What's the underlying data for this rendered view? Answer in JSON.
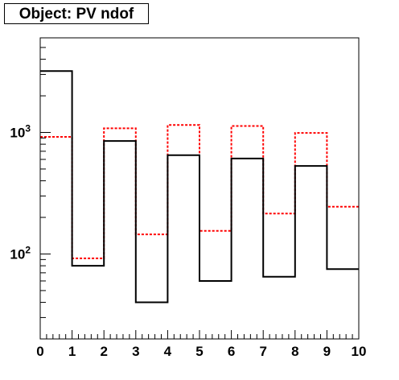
{
  "chart_data": {
    "type": "bar",
    "title": "Object: PV ndof",
    "xlabel": "",
    "ylabel": "",
    "x_bin_edges": [
      0,
      1,
      2,
      3,
      4,
      5,
      6,
      7,
      8,
      9,
      10
    ],
    "x_tick_labels": [
      "0",
      "1",
      "2",
      "3",
      "4",
      "5",
      "6",
      "7",
      "8",
      "9",
      "10"
    ],
    "xlim": [
      0,
      10
    ],
    "ylim": [
      20,
      6000
    ],
    "y_scale": "log",
    "y_tick_labels": [
      {
        "value": 1000,
        "base": "10",
        "exp": "3"
      },
      {
        "value": 100,
        "base": "10",
        "exp": "2"
      }
    ],
    "grid": false,
    "series": [
      {
        "style": "solid",
        "color": "#000000",
        "values": [
          3200,
          80,
          850,
          40,
          650,
          60,
          610,
          65,
          530,
          75
        ]
      },
      {
        "style": "dashed",
        "color": "#ff0000",
        "values": [
          920,
          92,
          1080,
          145,
          1150,
          155,
          1130,
          215,
          990,
          245
        ]
      }
    ]
  }
}
